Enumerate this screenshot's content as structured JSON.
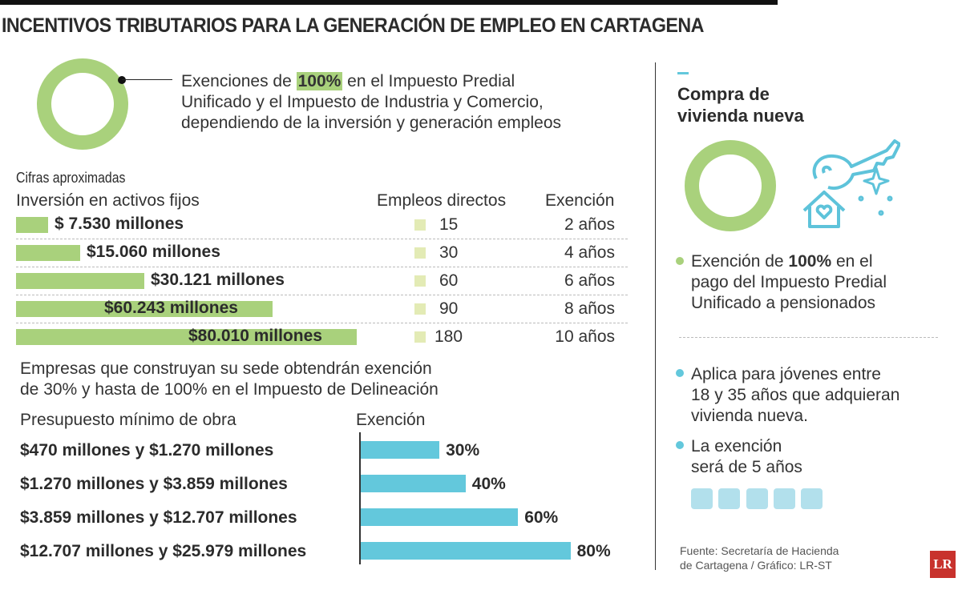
{
  "title": "INCENTIVOS TRIBUTARIOS PARA LA GENERACIÓN DE EMPLEO EN CARTAGENA",
  "intro": {
    "pre": "Exenciones de ",
    "highlight": "100%",
    "post": " en el Impuesto Predial",
    "line2": "Unificado y el Impuesto de Industria y Comercio,",
    "line3": "dependiendo de la inversión y generación empleos"
  },
  "colors": {
    "green": "#a9d17c",
    "cyan": "#63c8dc",
    "pale": "#e3ebb5",
    "logo": "#c8322d"
  },
  "chart_data": [
    {
      "type": "bar",
      "orientation": "horizontal",
      "note": "Cifras aproximadas",
      "headers": [
        "Inversión en activos fijos",
        "Empleos directos",
        "Exención"
      ],
      "categories": [
        "$ 7.530 millones",
        "$15.060 millones",
        "$30.121 millones",
        "$60.243 millones",
        "$80.010 millones"
      ],
      "values": [
        7530,
        15060,
        30121,
        60243,
        80010
      ],
      "unit": "millones",
      "empleos": [
        "15",
        "30",
        "60",
        "90",
        "180"
      ],
      "exencion": [
        "2 años",
        "4 años",
        "6 años",
        "8 años",
        "10 años"
      ]
    },
    {
      "type": "bar",
      "orientation": "horizontal",
      "headers": [
        "Presupuesto mínimo de obra",
        "Exención"
      ],
      "categories": [
        "$470 millones y $1.270 millones",
        "$1.270 millones y $3.859 millones",
        "$3.859 millones y $12.707 millones",
        "$12.707 millones y $25.979 millones"
      ],
      "values": [
        30,
        40,
        60,
        80
      ],
      "labels": [
        "30%",
        "40%",
        "60%",
        "80%"
      ]
    }
  ],
  "delineacion": {
    "line1": "Empresas que construyan su sede obtendrán exención",
    "line2": "de 30% y hasta de 100% en el Impuesto de Delineación"
  },
  "side": {
    "title1": "Compra de",
    "title2": "vivienda nueva",
    "b1": {
      "pre": "Exención de ",
      "bold": "100%",
      "post": " en el",
      "line2": "pago del Impuesto Predial",
      "line3": "Unificado a pensionados"
    },
    "b2": {
      "line1": "Aplica para jóvenes entre",
      "line2": "18 y 35 años que adquieran",
      "line3": "vivienda nueva."
    },
    "b3": {
      "line1": "La exención",
      "line2": "será de 5 años"
    },
    "years": 5
  },
  "footer": {
    "line1": "Fuente: Secretaría de Hacienda",
    "line2": "de Cartagena / Gráfico: LR-ST"
  },
  "logo": "LR"
}
